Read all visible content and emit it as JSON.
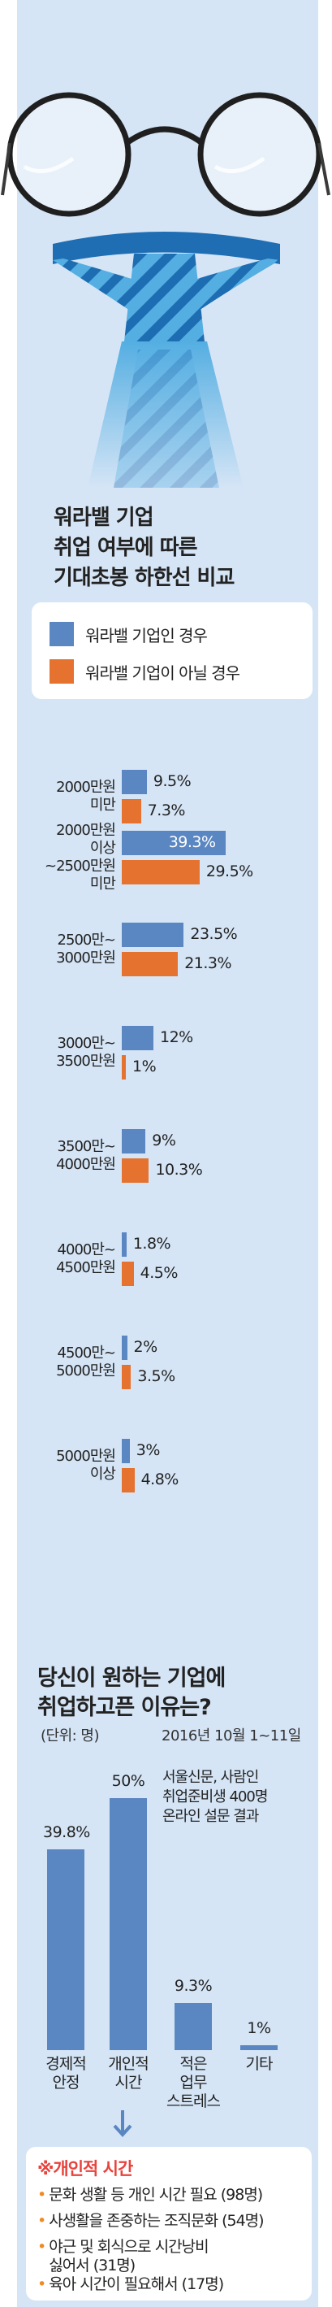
{
  "colors": {
    "panel": "#d5e5f6",
    "blue": "#5a86c2",
    "orange": "#e5722f",
    "accent_red": "#e9423b",
    "bullet": "#f08a24"
  },
  "illustration": {
    "items": [
      "glasses-icon",
      "necktie-icon"
    ]
  },
  "chart_data": [
    {
      "type": "bar",
      "orientation": "horizontal",
      "title_lines": [
        "워라밸 기업",
        "취업 여부에 따른",
        "기대초봉 하한선 비교"
      ],
      "legend": [
        "워라밸 기업인 경우",
        "워라밸 기업이 아닐 경우"
      ],
      "categories": [
        {
          "lines": [
            "2000만원",
            "미만"
          ]
        },
        {
          "lines": [
            "2000만원",
            "이상",
            "~2500만원",
            "미만"
          ]
        },
        {
          "lines": [
            "2500만~",
            "3000만원"
          ]
        },
        {
          "lines": [
            "3000만~",
            "3500만원"
          ]
        },
        {
          "lines": [
            "3500만~",
            "4000만원"
          ]
        },
        {
          "lines": [
            "4000만~",
            "4500만원"
          ]
        },
        {
          "lines": [
            "4500만~",
            "5000만원"
          ]
        },
        {
          "lines": [
            "5000만원",
            "이상"
          ]
        }
      ],
      "series": [
        {
          "name": "워라밸 기업인 경우",
          "values": [
            9.5,
            39.3,
            23.5,
            12,
            9,
            1.8,
            2,
            3
          ],
          "labels": [
            "9.5%",
            "39.3%",
            "23.5%",
            "12%",
            "9%",
            "1.8%",
            "2%",
            "3%"
          ]
        },
        {
          "name": "워라밸 기업이 아닐 경우",
          "values": [
            7.3,
            29.5,
            21.3,
            1,
            10.3,
            4.5,
            3.5,
            4.8
          ],
          "labels": [
            "7.3%",
            "29.5%",
            "21.3%",
            "1%",
            "10.3%",
            "4.5%",
            "3.5%",
            "4.8%"
          ]
        }
      ],
      "unit": "%"
    },
    {
      "type": "bar",
      "orientation": "vertical",
      "title_lines": [
        "당신이 원하는 기업에",
        "취업하고픈 이유는?"
      ],
      "unit_label": "(단위: 명)",
      "date": "2016년 10월 1~11일",
      "source_lines": [
        "서울신문, 사람인",
        "취업준비생 400명",
        "온라인 설문 결과"
      ],
      "categories": [
        {
          "lines": [
            "경제적",
            "안정"
          ]
        },
        {
          "lines": [
            "개인적",
            "시간"
          ]
        },
        {
          "lines": [
            "적은",
            "업무",
            "스트레스"
          ]
        },
        {
          "lines": [
            "기타"
          ]
        }
      ],
      "values": [
        39.8,
        50,
        9.3,
        1
      ],
      "labels": [
        "39.8%",
        "50%",
        "9.3%",
        "1%"
      ]
    }
  ],
  "reasons": {
    "title": "※개인적 시간",
    "items": [
      {
        "lines": [
          "문화 생활 등 개인 시간 필요 (98명)"
        ]
      },
      {
        "lines": [
          "사생활을 존중하는 조직문화 (54명)"
        ]
      },
      {
        "lines": [
          "야근 및 회식으로 시간낭비",
          "싫어서 (31명)"
        ]
      },
      {
        "lines": [
          "육아 시간이 필요해서 (17명)"
        ]
      }
    ]
  }
}
